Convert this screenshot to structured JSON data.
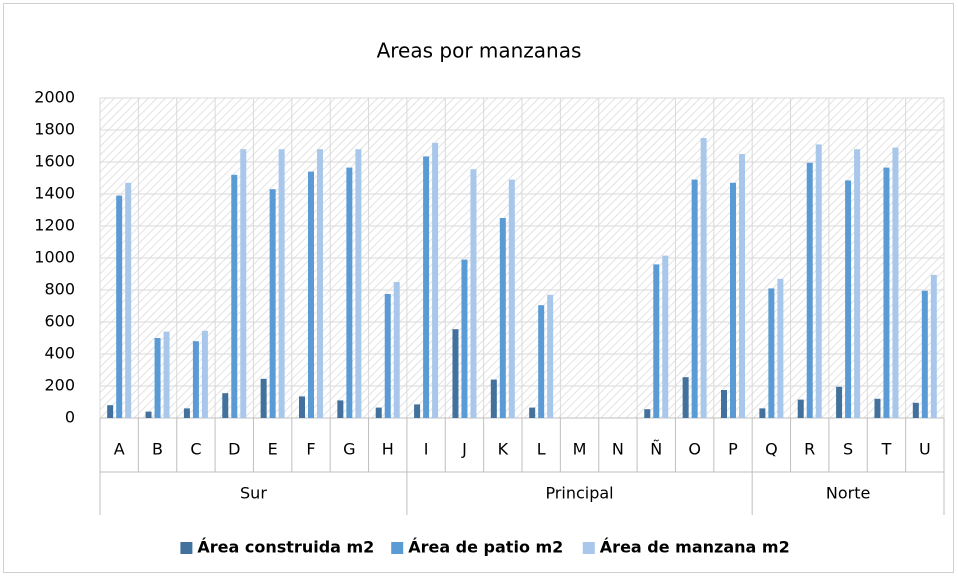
{
  "chart_data": {
    "type": "bar",
    "title": "Areas por manzanas",
    "categories": [
      "A",
      "B",
      "C",
      "D",
      "E",
      "F",
      "G",
      "H",
      "I",
      "J",
      "K",
      "L",
      "M",
      "N",
      "Ñ",
      "O",
      "P",
      "Q",
      "R",
      "S",
      "T",
      "U"
    ],
    "groups": [
      {
        "name": "Sur",
        "span": 8
      },
      {
        "name": "Principal",
        "span": 9
      },
      {
        "name": "Norte",
        "span": 5
      }
    ],
    "series": [
      {
        "name": "Área construida m2",
        "color": "#41719c",
        "values": [
          80,
          40,
          60,
          155,
          245,
          135,
          110,
          65,
          85,
          555,
          240,
          65,
          0,
          0,
          55,
          255,
          175,
          60,
          115,
          195,
          120,
          95
        ]
      },
      {
        "name": "Área de patio m2",
        "color": "#5b9bd5",
        "values": [
          1390,
          500,
          480,
          1520,
          1430,
          1540,
          1565,
          775,
          1635,
          990,
          1250,
          705,
          0,
          0,
          960,
          1490,
          1470,
          810,
          1595,
          1485,
          1565,
          795
        ]
      },
      {
        "name": "Área de manzana m2",
        "color": "#a9c7ea",
        "values": [
          1470,
          540,
          545,
          1680,
          1680,
          1680,
          1680,
          850,
          1720,
          1555,
          1490,
          770,
          0,
          0,
          1015,
          1750,
          1650,
          870,
          1710,
          1680,
          1690,
          895
        ]
      }
    ],
    "ylim": [
      0,
      2000
    ],
    "yticks": [
      0,
      200,
      400,
      600,
      800,
      1000,
      1200,
      1400,
      1600,
      1800,
      2000
    ],
    "grid": true,
    "legend": "bottom"
  }
}
